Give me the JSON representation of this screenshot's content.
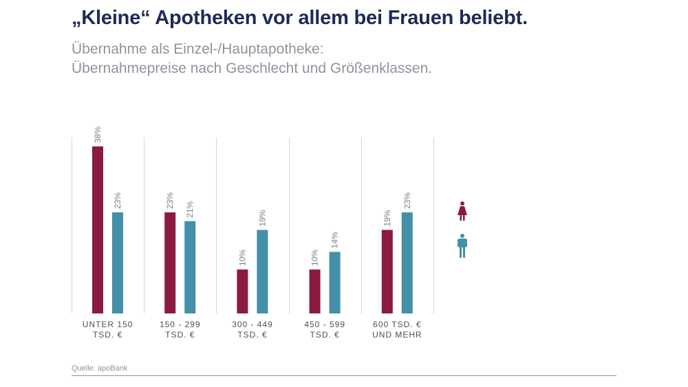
{
  "header": {
    "title": "„Kleine“ Apotheken vor allem bei Frauen beliebt.",
    "subtitle_line1": "Übernahme als Einzel-/Hauptapotheke:",
    "subtitle_line2": "Übernahmepreise nach Geschlecht und Größenklassen."
  },
  "footer": {
    "source": "Quelle: apoBank"
  },
  "chart_data": {
    "type": "bar",
    "title": "„Kleine“ Apotheken vor allem bei Frauen beliebt.",
    "subtitle": "Übernahme als Einzel-/Hauptapotheke: Übernahmepreise nach Geschlecht und Größenklassen.",
    "xlabel": "",
    "ylabel": "",
    "ylim": [
      0,
      40
    ],
    "grid": false,
    "legend": "right",
    "categories": [
      [
        "UNTER 150",
        "TSD. €"
      ],
      [
        "150 - 299",
        "TSD. €"
      ],
      [
        "300 - 449",
        "TSD. €"
      ],
      [
        "450 - 599",
        "TSD. €"
      ],
      [
        "600 TSD. €",
        "UND MEHR"
      ]
    ],
    "series": [
      {
        "name": "Frauen",
        "icon": "female-icon",
        "color": "#8b1a41",
        "values": [
          38,
          23,
          10,
          10,
          19
        ],
        "labels": [
          "38%",
          "23%",
          "10%",
          "10%",
          "19%"
        ]
      },
      {
        "name": "Männer",
        "icon": "male-icon",
        "color": "#4390a8",
        "values": [
          23,
          21,
          19,
          14,
          23
        ],
        "labels": [
          "23%",
          "21%",
          "19%",
          "14%",
          "23%"
        ]
      }
    ]
  }
}
